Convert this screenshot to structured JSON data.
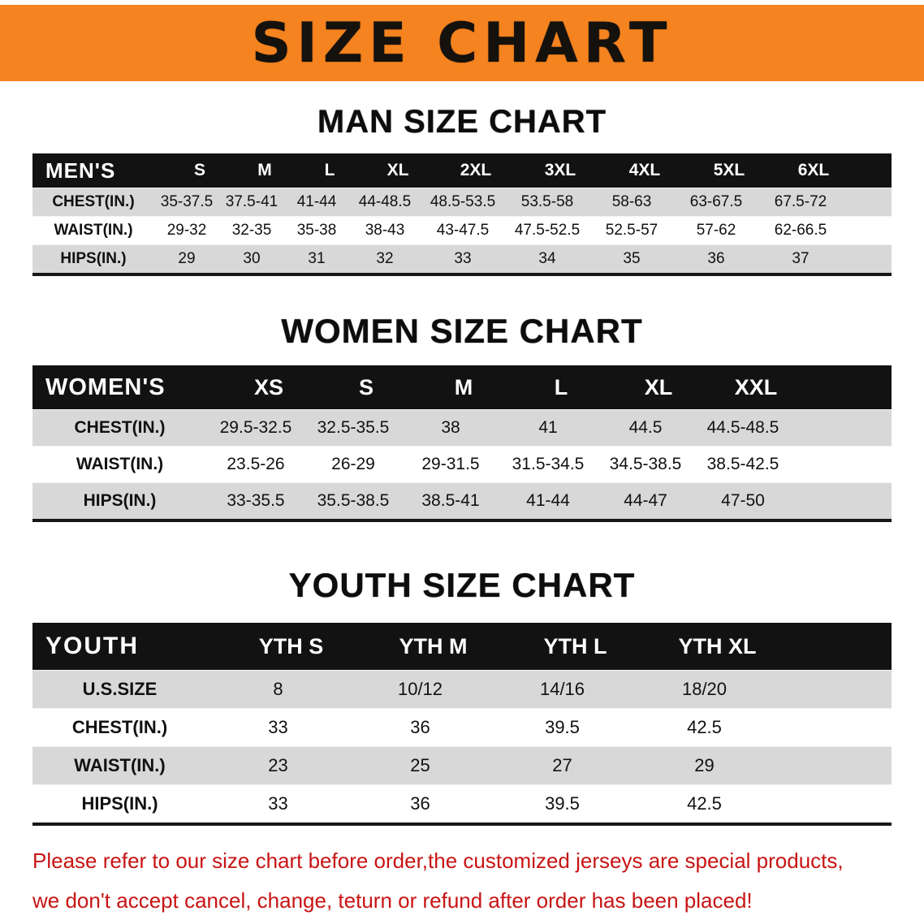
{
  "banner": {
    "title": "SIZE CHART"
  },
  "colors": {
    "banner_orange": "#F5831F",
    "header_black": "#121212",
    "row_gray": "#D8D8D8",
    "notice_red": "#C81414"
  },
  "chart_data": [
    {
      "type": "table",
      "title": "MAN SIZE CHART",
      "header_label": "MEN'S",
      "columns": [
        "S",
        "M",
        "L",
        "XL",
        "2XL",
        "3XL",
        "4XL",
        "5XL",
        "6XL"
      ],
      "rows": [
        {
          "label": "CHEST(IN.)",
          "values": [
            "35-37.5",
            "37.5-41",
            "41-44",
            "44-48.5",
            "48.5-53.5",
            "53.5-58",
            "58-63",
            "63-67.5",
            "67.5-72"
          ]
        },
        {
          "label": "WAIST(IN.)",
          "values": [
            "29-32",
            "32-35",
            "35-38",
            "38-43",
            "43-47.5",
            "47.5-52.5",
            "52.5-57",
            "57-62",
            "62-66.5"
          ]
        },
        {
          "label": "HIPS(IN.)",
          "values": [
            "29",
            "30",
            "31",
            "32",
            "33",
            "34",
            "35",
            "36",
            "37"
          ]
        }
      ]
    },
    {
      "type": "table",
      "title": "WOMEN SIZE CHART",
      "header_label": "WOMEN'S",
      "columns": [
        "XS",
        "S",
        "M",
        "L",
        "XL",
        "XXL"
      ],
      "rows": [
        {
          "label": "CHEST(IN.)",
          "values": [
            "29.5-32.5",
            "32.5-35.5",
            "38",
            "41",
            "44.5",
            "44.5-48.5"
          ]
        },
        {
          "label": "WAIST(IN.)",
          "values": [
            "23.5-26",
            "26-29",
            "29-31.5",
            "31.5-34.5",
            "34.5-38.5",
            "38.5-42.5"
          ]
        },
        {
          "label": "HIPS(IN.)",
          "values": [
            "33-35.5",
            "35.5-38.5",
            "38.5-41",
            "41-44",
            "44-47",
            "47-50"
          ]
        }
      ]
    },
    {
      "type": "table",
      "title": "YOUTH SIZE CHART",
      "header_label": "YOUTH",
      "columns": [
        "YTH S",
        "YTH M",
        "YTH L",
        "YTH XL"
      ],
      "rows": [
        {
          "label": "U.S.SIZE",
          "values": [
            "8",
            "10/12",
            "14/16",
            "18/20"
          ]
        },
        {
          "label": "CHEST(IN.)",
          "values": [
            "33",
            "36",
            "39.5",
            "42.5"
          ]
        },
        {
          "label": "WAIST(IN.)",
          "values": [
            "23",
            "25",
            "27",
            "29"
          ]
        },
        {
          "label": "HIPS(IN.)",
          "values": [
            "33",
            "36",
            "39.5",
            "42.5"
          ]
        }
      ]
    }
  ],
  "footer": {
    "line1": "Please refer to our size chart before order,the customized jerseys are special products,",
    "line2": "we don't accept cancel, change, teturn or refund after order has been placed!"
  }
}
